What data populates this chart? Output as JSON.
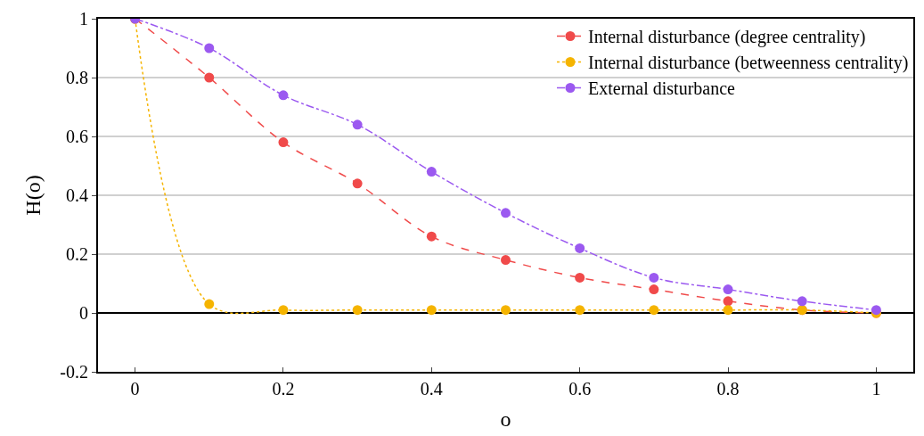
{
  "chart_data": {
    "type": "line",
    "xlabel": "o",
    "ylabel": "H(o)",
    "x": [
      0,
      0.1,
      0.2,
      0.3,
      0.4,
      0.5,
      0.6,
      0.7,
      0.8,
      0.9,
      1
    ],
    "series": [
      {
        "name": "Internal disturbance (degree centrality)",
        "color": "#f04a4a",
        "line_style": "dashed",
        "values": [
          1,
          0.8,
          0.58,
          0.44,
          0.26,
          0.18,
          0.12,
          0.08,
          0.04,
          0.01,
          0
        ]
      },
      {
        "name": "Internal disturbance (betweenness centrality)",
        "color": "#f5b400",
        "line_style": "dotted",
        "values": [
          1,
          0.03,
          0.01,
          0.01,
          0.01,
          0.01,
          0.01,
          0.01,
          0.01,
          0.01,
          0
        ]
      },
      {
        "name": "External disturbance",
        "color": "#9b59f0",
        "line_style": "dashdot",
        "values": [
          1,
          0.9,
          0.74,
          0.64,
          0.48,
          0.34,
          0.22,
          0.12,
          0.08,
          0.04,
          0.01
        ]
      }
    ],
    "xlim": [
      -0.05,
      1.05
    ],
    "xticks": [
      0,
      0.2,
      0.4,
      0.6,
      0.8,
      1
    ],
    "ylim": [
      -0.2,
      1
    ],
    "yticks": [
      -0.2,
      0,
      0.2,
      0.4,
      0.6,
      0.8,
      1
    ],
    "grid": "y",
    "legend": "top right",
    "marker": "circle"
  }
}
